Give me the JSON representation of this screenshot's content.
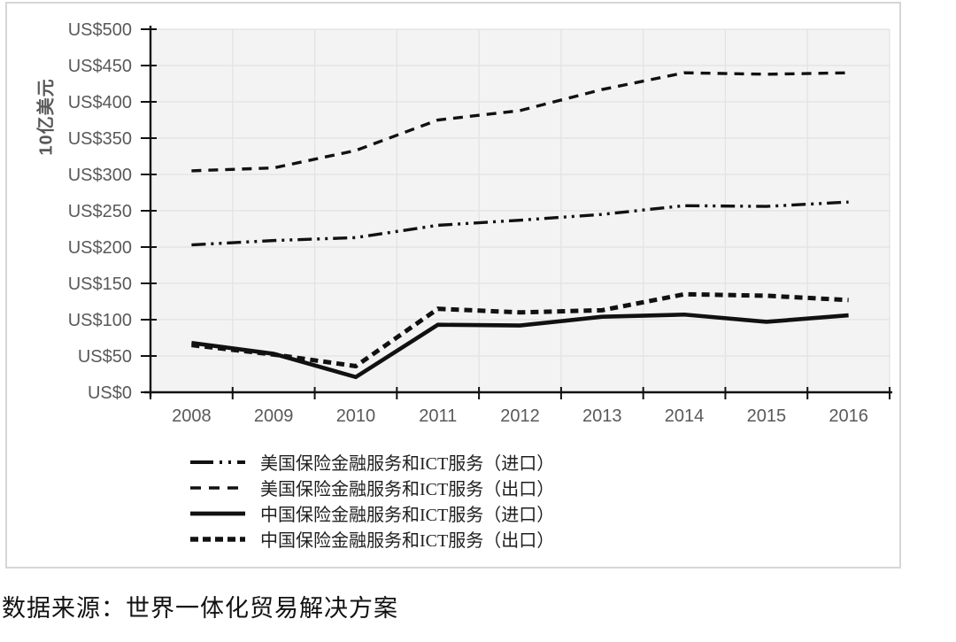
{
  "chart_data": {
    "type": "line",
    "title": "",
    "ylabel": "10亿美元",
    "xlabel": "",
    "ylim": [
      0,
      500
    ],
    "y_tick_step": 50,
    "y_tick_labels": [
      "US$0",
      "US$50",
      "US$100",
      "US$150",
      "US$200",
      "US$250",
      "US$300",
      "US$350",
      "US$400",
      "US$450",
      "US$500"
    ],
    "x_tick_labels": [
      "2008",
      "2009",
      "2010",
      "2011",
      "2012",
      "2013",
      "2014",
      "2015",
      "2016"
    ],
    "grid": true,
    "legend_position": "bottom",
    "line_color": "#111111",
    "plot_bg": "#f3f3f3",
    "grid_color": "#e2e2e2",
    "series": [
      {
        "name": "美国保险金融服务和ICT服务（进口）",
        "style": "dash-dot-dot",
        "values": [
          203,
          209,
          213,
          230,
          237,
          245,
          257,
          256,
          262
        ]
      },
      {
        "name": "美国保险金融服务和ICT服务（出口）",
        "style": "dashed",
        "values": [
          305,
          309,
          333,
          375,
          388,
          417,
          440,
          438,
          440
        ]
      },
      {
        "name": "中国保险金融服务和ICT服务（进口）",
        "style": "solid",
        "values": [
          68,
          53,
          21,
          93,
          92,
          104,
          107,
          97,
          106
        ]
      },
      {
        "name": "中国保险金融服务和ICT服务（出口）",
        "style": "dense-dashed",
        "values": [
          65,
          52,
          36,
          115,
          110,
          113,
          135,
          133,
          127
        ]
      }
    ]
  },
  "caption": "数据来源：世界一体化贸易解决方案"
}
